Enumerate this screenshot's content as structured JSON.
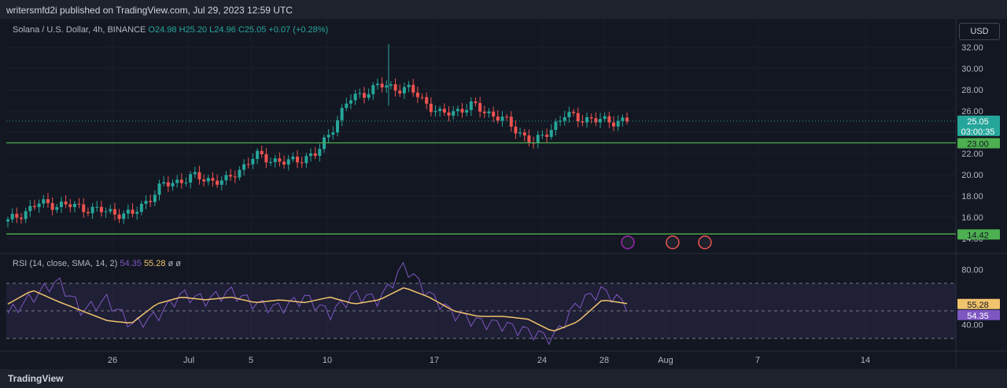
{
  "header": {
    "published": "writersmfd2i published on TradingView.com, Jul 29, 2023 12:59 UTC"
  },
  "symbol": {
    "name": "Solana / U.S. Dollar, 4h, BINANCE",
    "open": "O24.98",
    "high": "H25.20",
    "low": "L24.96",
    "close": "C25.05",
    "change": "+0.07 (+0.28%)"
  },
  "currency": "USD",
  "rsi_legend": {
    "label": "RSI (14, close, SMA, 14, 2)",
    "rsi": "54.35",
    "sma": "55.28",
    "extra": "ø  ø"
  },
  "price_tags": {
    "last": "25.05",
    "countdown": "03:00:35",
    "line_upper": "23.00",
    "line_lower": "14.42",
    "rsi_sma": "55.28",
    "rsi": "54.35"
  },
  "footer": {
    "brand": "TradingView"
  },
  "colors": {
    "up": "#26a69a",
    "down": "#ef5350",
    "level": "#4caf50",
    "rsi": "#7e57c2",
    "sma": "#f0c36d",
    "background": "#131722"
  },
  "chart_data": [
    {
      "type": "candlestick",
      "ylim": [
        14,
        33
      ],
      "yticks": [
        "32.00",
        "30.00",
        "28.00",
        "26.00",
        "24.00",
        "22.00",
        "20.00",
        "18.00",
        "16.00",
        "14.00"
      ],
      "xticks": [
        "26",
        "Jul",
        "5",
        "10",
        "17",
        "24",
        "28",
        "Aug",
        "7",
        "14"
      ],
      "horizontal_lines": [
        23.0,
        14.42
      ],
      "last_price": 25.05,
      "series": [
        {
          "name": "close",
          "x": [
            "Jun 22",
            "Jun 24",
            "Jun 26",
            "Jun 28",
            "Jun 30",
            "Jul 2",
            "Jul 4",
            "Jul 6",
            "Jul 8",
            "Jul 10",
            "Jul 12",
            "Jul 13",
            "Jul 14",
            "Jul 16",
            "Jul 18",
            "Jul 20",
            "Jul 22",
            "Jul 24",
            "Jul 26",
            "Jul 28",
            "Jul 29"
          ],
          "values": [
            15.6,
            17.3,
            17.1,
            16.6,
            16.2,
            19.0,
            19.8,
            19.3,
            21.8,
            21.1,
            22.0,
            27.0,
            28.4,
            28.0,
            25.6,
            26.5,
            25.2,
            22.9,
            25.6,
            25.1,
            25.05
          ]
        }
      ]
    },
    {
      "type": "line",
      "title": "RSI (14, close, SMA, 14, 2)",
      "ylim": [
        28,
        83
      ],
      "yticks": [
        "80.00",
        "40.00"
      ],
      "bands": [
        70,
        50,
        30
      ],
      "series": [
        {
          "name": "RSI",
          "values": [
            48,
            60,
            72,
            50,
            58,
            40,
            46,
            62,
            58,
            64,
            55,
            52,
            60,
            48,
            62,
            58,
            83,
            62,
            48,
            42,
            40,
            35,
            30,
            56,
            65,
            54.35
          ]
        },
        {
          "name": "SMA",
          "values": [
            55,
            65,
            57,
            50,
            43,
            41,
            55,
            60,
            58,
            60,
            56,
            58,
            56,
            60,
            55,
            58,
            67,
            60,
            50,
            46,
            46,
            44,
            35,
            42,
            58,
            55.28
          ]
        }
      ]
    }
  ]
}
